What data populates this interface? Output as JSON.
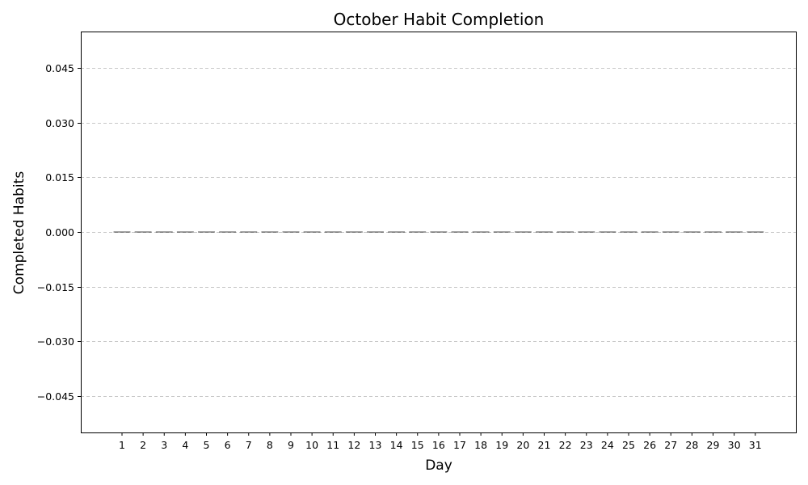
{
  "chart_data": {
    "type": "bar",
    "title": "October Habit Completion",
    "xlabel": "Day",
    "ylabel": "Completed Habits",
    "categories": [
      "1",
      "2",
      "3",
      "4",
      "5",
      "6",
      "7",
      "8",
      "9",
      "10",
      "11",
      "12",
      "13",
      "14",
      "15",
      "16",
      "17",
      "18",
      "19",
      "20",
      "21",
      "22",
      "23",
      "24",
      "25",
      "26",
      "27",
      "28",
      "29",
      "30",
      "31"
    ],
    "values": [
      0,
      0,
      0,
      0,
      0,
      0,
      0,
      0,
      0,
      0,
      0,
      0,
      0,
      0,
      0,
      0,
      0,
      0,
      0,
      0,
      0,
      0,
      0,
      0,
      0,
      0,
      0,
      0,
      0,
      0,
      0
    ],
    "ylim": [
      -0.055,
      0.055
    ],
    "yticks": [
      "0.045",
      "0.030",
      "0.015",
      "0.000",
      "−0.015",
      "−0.030",
      "−0.045"
    ],
    "ytick_values": [
      0.045,
      0.03,
      0.015,
      0.0,
      -0.015,
      -0.03,
      -0.045
    ],
    "grid": "y-dashed",
    "legend": "none"
  }
}
